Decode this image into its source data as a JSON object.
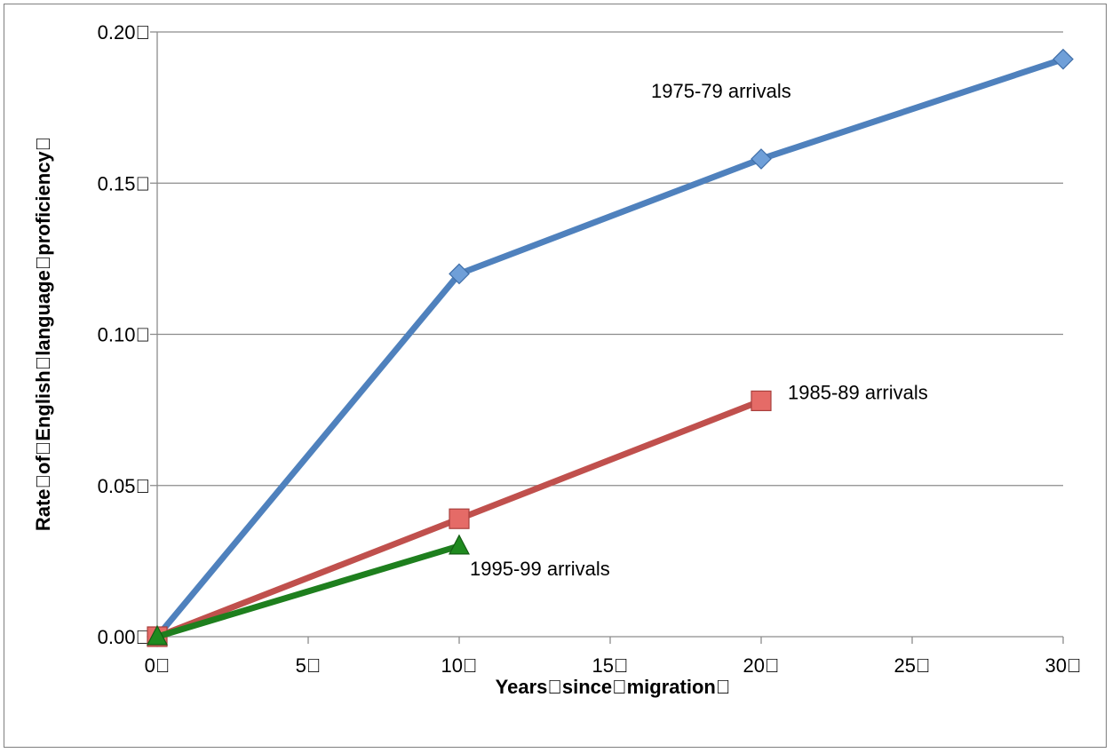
{
  "chart_data": {
    "type": "line",
    "title": "",
    "xlabel": "Years\u0000since\u0000migration\u0000",
    "ylabel": "Rate\u0000of\u0000English\u0000language\u0000proficiency\u0000",
    "xlim": [
      0,
      30
    ],
    "ylim": [
      0,
      0.2
    ],
    "x_ticks": [
      "0\u0000",
      "5\u0000",
      "10\u0000",
      "15\u0000",
      "20\u0000",
      "25\u0000",
      "30\u0000"
    ],
    "y_ticks": [
      "0.00\u0000",
      "0.05\u0000",
      "0.10\u0000",
      "0.15\u0000",
      "0.20\u0000"
    ],
    "grid": "horizontal",
    "series": [
      {
        "name": "1975-79 arrivals",
        "color": "#4f81bd",
        "marker": "diamond",
        "x": [
          0,
          10,
          20,
          30
        ],
        "y": [
          0.0,
          0.12,
          0.158,
          0.191
        ]
      },
      {
        "name": "1985-89 arrivals",
        "color": "#c0504d",
        "marker": "square",
        "x": [
          0,
          10,
          20
        ],
        "y": [
          0.0,
          0.039,
          0.078
        ]
      },
      {
        "name": "1995-99 arrivals",
        "color": "#1e7f1e",
        "marker": "triangle",
        "x": [
          0,
          10
        ],
        "y": [
          0.0,
          0.03
        ]
      }
    ]
  }
}
